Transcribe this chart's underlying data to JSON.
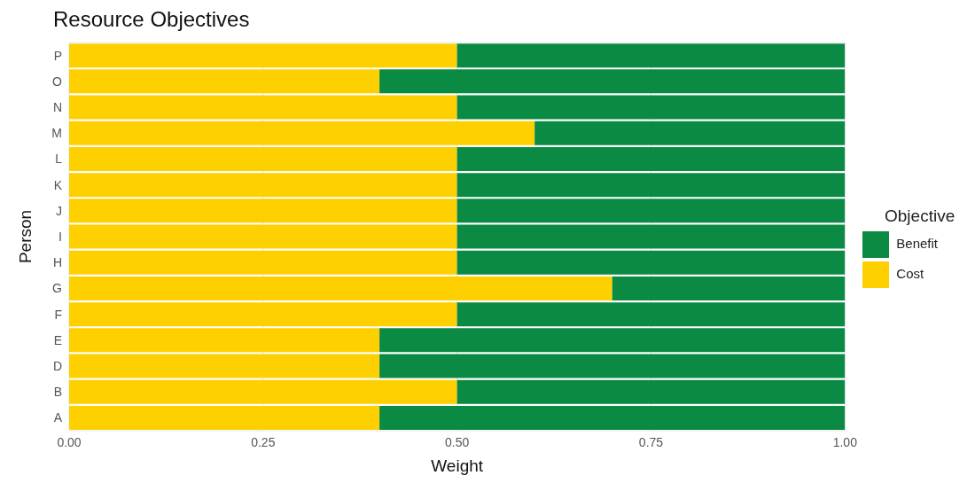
{
  "chart_data": {
    "type": "bar",
    "orientation": "horizontal",
    "stacked": true,
    "title": "Resource Objectives",
    "xlabel": "Weight",
    "ylabel": "Person",
    "legend_title": "Objective",
    "legend": "right",
    "grid": true,
    "categories": [
      "P",
      "O",
      "N",
      "M",
      "L",
      "K",
      "J",
      "I",
      "H",
      "G",
      "F",
      "E",
      "D",
      "B",
      "A"
    ],
    "series": [
      {
        "name": "Cost",
        "color": "#ffd000",
        "values": [
          0.5,
          0.4,
          0.5,
          0.6,
          0.5,
          0.5,
          0.5,
          0.5,
          0.5,
          0.7,
          0.5,
          0.4,
          0.4,
          0.5,
          0.4
        ]
      },
      {
        "name": "Benefit",
        "color": "#0b8a44",
        "values": [
          0.5,
          0.6,
          0.5,
          0.4,
          0.5,
          0.5,
          0.5,
          0.5,
          0.5,
          0.3,
          0.5,
          0.6,
          0.6,
          0.5,
          0.6
        ]
      }
    ],
    "xlim": [
      0,
      1
    ],
    "xticks": [
      {
        "value": 0,
        "label": "0.00"
      },
      {
        "value": 0.25,
        "label": "0.25"
      },
      {
        "value": 0.5,
        "label": "0.50"
      },
      {
        "value": 0.75,
        "label": "0.75"
      },
      {
        "value": 1,
        "label": "1.00"
      }
    ]
  }
}
